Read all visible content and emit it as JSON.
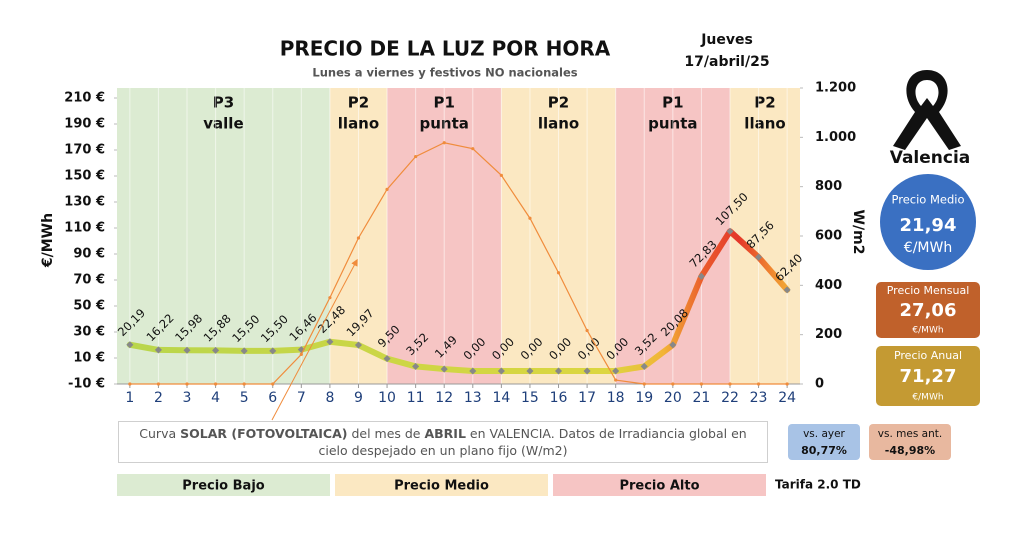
{
  "chart_data": {
    "type": "line",
    "title": "PRECIO DE LA LUZ POR HORA",
    "subtitle": "Lunes a viernes y festivos NO nacionales",
    "date": [
      "Jueves",
      "17/abril/25"
    ],
    "y_label": "€/MWh",
    "y2_label": "W/m2",
    "x": [
      1,
      2,
      3,
      4,
      5,
      6,
      7,
      8,
      9,
      10,
      11,
      12,
      13,
      14,
      15,
      16,
      17,
      18,
      19,
      20,
      21,
      22,
      23,
      24
    ],
    "xlim": [
      0.55,
      24.45
    ],
    "xticks": [
      1,
      2,
      3,
      4,
      5,
      6,
      7,
      8,
      9,
      10,
      11,
      12,
      13,
      14,
      15,
      16,
      17,
      18,
      19,
      20,
      21,
      22,
      23,
      24
    ],
    "ylim": [
      -10,
      210
    ],
    "yticks": [
      {
        "value": -10,
        "label": "-10 €"
      },
      {
        "value": 10,
        "label": "10 €"
      },
      {
        "value": 30,
        "label": "30 €"
      },
      {
        "value": 50,
        "label": "50 €"
      },
      {
        "value": 70,
        "label": "70 €"
      },
      {
        "value": 90,
        "label": "90 €"
      },
      {
        "value": 110,
        "label": "110 €"
      },
      {
        "value": 130,
        "label": "130 €"
      },
      {
        "value": 150,
        "label": "150 €"
      },
      {
        "value": 170,
        "label": "170 €"
      },
      {
        "value": 190,
        "label": "190 €"
      },
      {
        "value": 210,
        "label": "210 €"
      }
    ],
    "y2lim": [
      0,
      1200
    ],
    "y2ticks": [
      0,
      200,
      400,
      600,
      800,
      {
        "value": 1000,
        "label": "1.000"
      },
      {
        "value": 1200,
        "label": "1.200"
      }
    ],
    "grid": true,
    "series": [
      {
        "color": "#d6d84a",
        "values": [
          20.19,
          16.22,
          15.98,
          15.88,
          15.5,
          15.5,
          16.46,
          22.48,
          19.97,
          9.5,
          3.52,
          1.49,
          0.0,
          0.0,
          0.0,
          0.0,
          0.0,
          0.0,
          3.52,
          20.08,
          72.83,
          107.5,
          87.56,
          62.4
        ],
        "value_labels": [
          "20,19",
          "16,22",
          "15,98",
          "15,88",
          "15,50",
          "15,50",
          "16,46",
          "22,48",
          "19,97",
          "9,50",
          "3,52",
          "1,49",
          "0,00",
          "0,00",
          "0,00",
          "0,00",
          "0,00",
          "0,00",
          "3,52",
          "20,08",
          "72,83",
          "107,50",
          "87,56",
          "62,40"
        ]
      },
      {
        "color": "#f08c3c",
        "axis": "y2",
        "values": [
          0,
          0,
          0,
          0,
          0,
          0,
          120,
          350,
          592,
          789,
          922,
          978,
          954,
          846,
          672,
          451,
          217,
          16,
          0,
          0,
          0,
          0,
          0,
          0
        ]
      }
    ],
    "period_bounds": [
      8,
      10,
      14,
      18,
      22
    ],
    "periods": [
      {
        "code": "P3",
        "name": "valle",
        "color": "#dcebd2"
      },
      {
        "code": "P2",
        "name": "llano",
        "color": "#fbe8c2"
      },
      {
        "code": "P1",
        "name": "punta",
        "color": "#f6c5c4"
      },
      {
        "code": "P2",
        "name": "llano",
        "color": "#fbe8c2"
      },
      {
        "code": "P1",
        "name": "punta",
        "color": "#f6c5c4"
      },
      {
        "code": "P2",
        "name": "llano",
        "color": "#fbe8c2"
      }
    ],
    "note": [
      {
        "text": "Curva ",
        "bold": false
      },
      {
        "text": "SOLAR (FOTOVOLTAICA)",
        "bold": true
      },
      {
        "text": " del mes de ",
        "bold": false
      },
      {
        "text": "ABRIL",
        "bold": true
      },
      {
        "text": " en VALENCIA. Datos de Irradiancia global en cielo despejado en un plano fijo (W/m2)",
        "bold": false
      }
    ],
    "legend": [
      {
        "label": "Precio Bajo",
        "color": "#dcebd2"
      },
      {
        "label": "Precio Medio",
        "color": "#fbe8c2"
      },
      {
        "label": "Precio Alto",
        "color": "#f6c5c4"
      }
    ],
    "tariff": "Tarifa 2.0 TD",
    "summary": {
      "city": "Valencia",
      "average": {
        "label": "Precio Medio",
        "value": "21,94",
        "unit": "€/MWh"
      },
      "monthly": {
        "label": "Precio Mensual",
        "value": "27,06",
        "unit": "€/MWh"
      },
      "yearly": {
        "label": "Precio Anual",
        "value": "71,27",
        "unit": "€/MWh"
      },
      "vs_yesterday": {
        "label": "vs. ayer",
        "value": "80,77%"
      },
      "vs_last_month": {
        "label": "vs. mes ant.",
        "value": "-48,98%"
      }
    }
  }
}
